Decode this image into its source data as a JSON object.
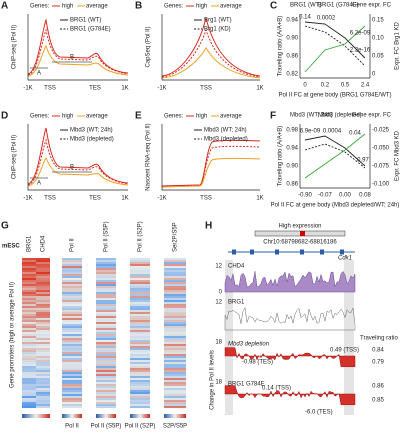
{
  "figure": {
    "A": {
      "letter": "A",
      "genes": "Genes:",
      "high": "high",
      "average": "average",
      "s1": "BRG1 (WT)",
      "s2": "BRG1 (G784E)",
      "ylabel": "ChIP-seq (Pol II)",
      "xticks": [
        "-1K",
        "TSS",
        "TES",
        "1K"
      ],
      "region_a": "A",
      "region_b": "B"
    },
    "B": {
      "letter": "B",
      "genes": "Genes:",
      "high": "high",
      "average": "average",
      "s1": "Brg1 (WT)",
      "s2": "Brg1 (KD)",
      "ylabel": "CapSeq (Pol II)",
      "xticks": [
        "-1K",
        "TSS",
        "1K"
      ]
    },
    "C": {
      "letter": "C",
      "s1": "BRG1 (WT)",
      "s2": "BRG1 (G784E)",
      "s3": "Gene expr. FC",
      "ylabel": "Traveling ratio (A/A+B)",
      "y2label": "Expr. FC Brg1 KD",
      "xlabel": "Pol II FC at gene body (BRG1 G784E/WT)",
      "yticks": [
        "0.94",
        "0.90",
        "0.86",
        "0.82"
      ],
      "y2ticks": [
        "0.15",
        "0.10",
        "0.05",
        "0"
      ],
      "xticks": [
        "0",
        "0.2",
        "0.5",
        "2.4"
      ],
      "pvalues": [
        "0.14",
        "0.0002",
        "6.2e-09",
        "2.2e-16"
      ]
    },
    "D": {
      "letter": "D",
      "genes": "Genes:",
      "high": "high",
      "average": "average",
      "s1": "Mbd3 (WT; 24h)",
      "s2": "Mbd3 (depleted)",
      "ylabel": "ChIP-seq (Pol II)",
      "xticks": [
        "-1K",
        "TSS",
        "TES",
        "1K"
      ],
      "region_a": "A",
      "region_b": "B"
    },
    "E": {
      "letter": "E",
      "genes": "Genes:",
      "high": "high",
      "average": "average",
      "s1": "Mbd3 (WT; 24h)",
      "s2": "Mbd3 (depleted)",
      "ylabel": "Nascent RNA-seq (Pol II)",
      "xticks": [
        "-1K",
        "TSS",
        "1K"
      ]
    },
    "F": {
      "letter": "F",
      "s1": "Mbd3 (WT; 24h)",
      "s2": "Mbd3 (depleted)",
      "s3": "Gene expr. FC",
      "ylabel": "Traveling ratio (A/A+B)",
      "y2label": "Expr. FC Mbd3 KD",
      "xlabel": "Pol II FC at gene body (Mbd3 depleted/WT; 24h)",
      "yticks": [
        "0.98",
        "0.94",
        "0.90",
        "0.86"
      ],
      "y2ticks": [
        "-0.025",
        "-0.050",
        "-0.075",
        "-0.100"
      ],
      "xticks": [
        "-0.90",
        "-0.07",
        "0.00",
        "0.08"
      ],
      "pvalues": [
        "6.9e-09",
        "0.0004",
        "0.04",
        "0.97"
      ]
    },
    "G": {
      "letter": "G",
      "cell": "mESC",
      "columns": [
        "BRG1",
        "CHD4",
        "Pol II",
        "Pol II (S5P)",
        "Pol II (S2P)",
        "Ser2P/S5P"
      ],
      "ylabel": "Gene promoters (high or average Pol II)",
      "bar_labels": [
        "Pol II",
        "Pol II (S5P)",
        "Pol II (S2P)",
        "S2P/S5P"
      ]
    },
    "H": {
      "letter": "H",
      "title": "High expression",
      "locus": "Chr10:68798682-68816186",
      "gene": "Cdk1",
      "tracks": [
        "CHD4",
        "BRG1",
        "Mbd3 depletion",
        "BRG1 G784E"
      ],
      "track_ticks": [
        "12",
        "0",
        "12",
        "18",
        "18"
      ],
      "annotations": [
        "0.49 (TSS)",
        "-0.98 (TES)",
        "0.14 (TSS)",
        "-6.0 (TES)"
      ],
      "tr_label": "Traveling ratio",
      "tr_values": [
        "0.84",
        "0.79",
        "0.86",
        "0.85"
      ],
      "ylabel": "Change in Pol II levels"
    }
  }
}
